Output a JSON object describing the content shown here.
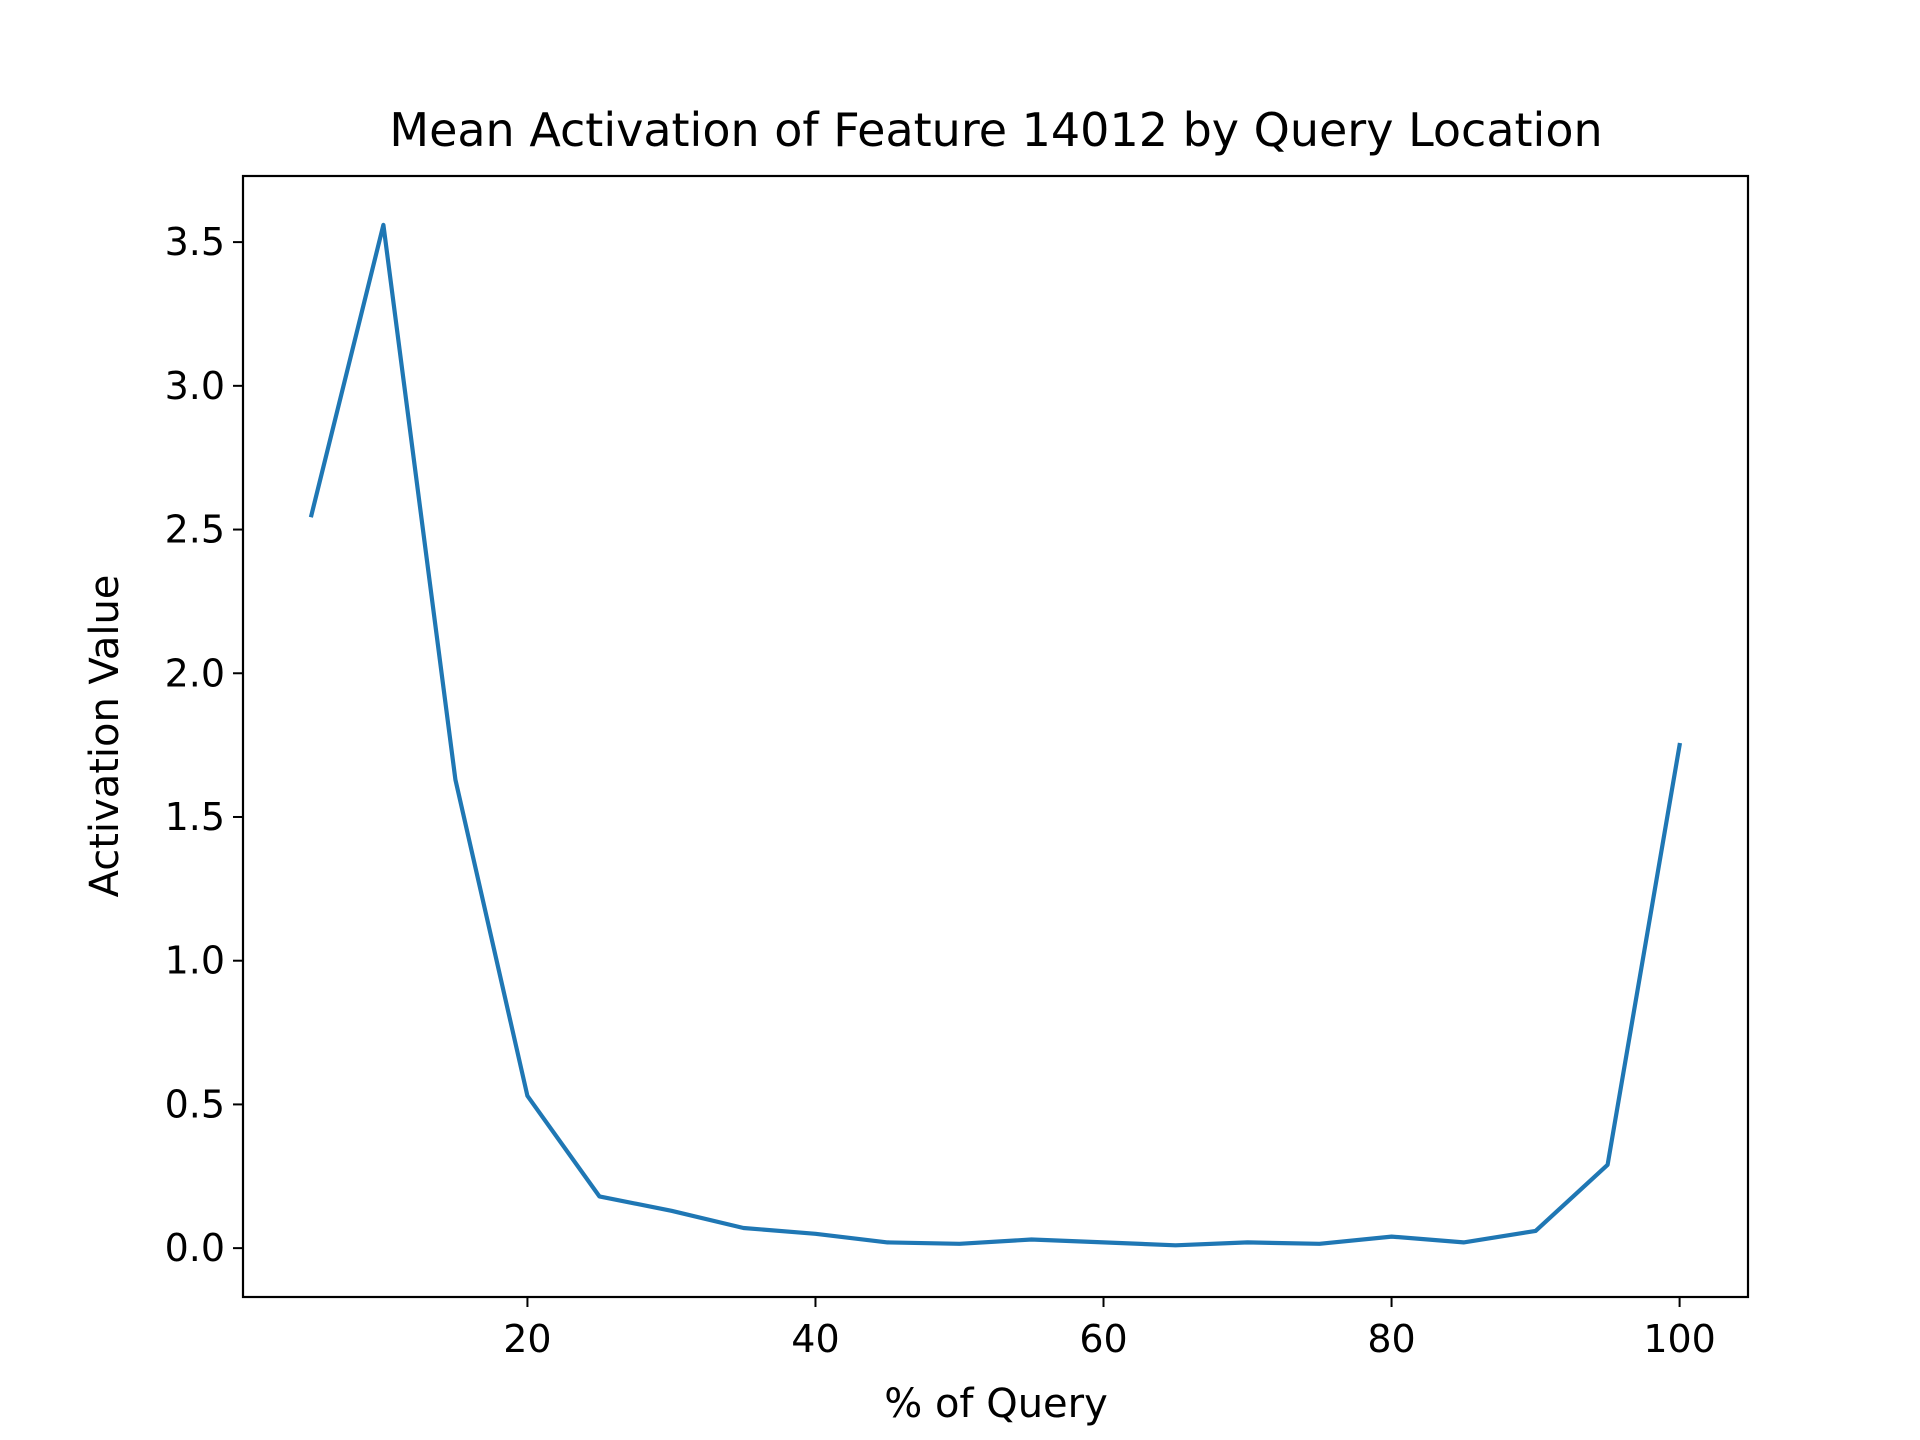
{
  "chart_data": {
    "type": "line",
    "title": "Mean Activation of Feature 14012 by Query Location",
    "xlabel": "% of Query",
    "ylabel": "Activation Value",
    "xlim": [
      0.25,
      104.75
    ],
    "ylim": [
      -0.17,
      3.73
    ],
    "xticks": [
      20,
      40,
      60,
      80,
      100
    ],
    "xtick_labels": [
      "20",
      "40",
      "60",
      "80",
      "100"
    ],
    "yticks": [
      0.0,
      0.5,
      1.0,
      1.5,
      2.0,
      2.5,
      3.0,
      3.5
    ],
    "ytick_labels": [
      "0.0",
      "0.5",
      "1.0",
      "1.5",
      "2.0",
      "2.5",
      "3.0",
      "3.5"
    ],
    "grid": false,
    "legend": false,
    "series": [
      {
        "color": "#1f77b4",
        "x": [
          5,
          10,
          15,
          20,
          25,
          30,
          35,
          40,
          45,
          50,
          55,
          60,
          65,
          70,
          75,
          80,
          85,
          90,
          95,
          100
        ],
        "y": [
          2.55,
          3.56,
          1.63,
          0.53,
          0.18,
          0.13,
          0.07,
          0.05,
          0.02,
          0.015,
          0.03,
          0.02,
          0.01,
          0.02,
          0.015,
          0.04,
          0.02,
          0.06,
          0.29,
          1.75
        ]
      }
    ]
  }
}
